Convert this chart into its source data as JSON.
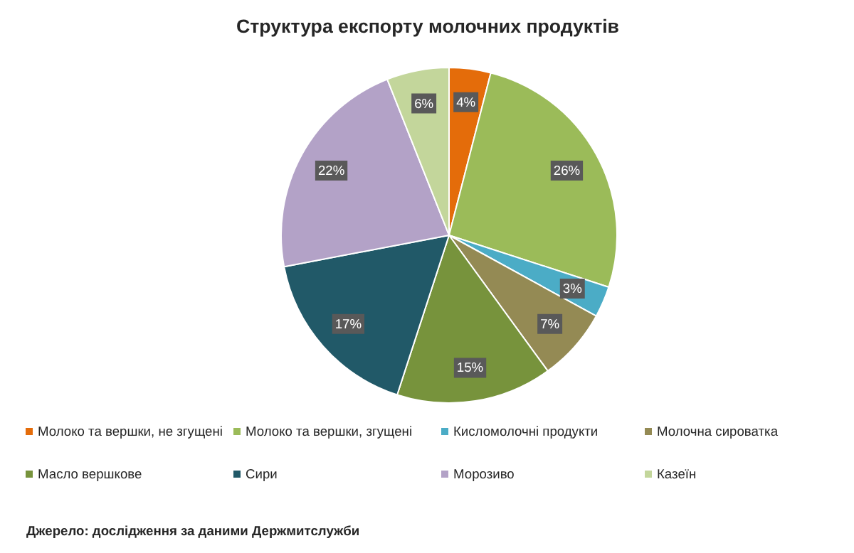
{
  "chart_data": {
    "type": "pie",
    "title": "Структура експорту молочних продуктів",
    "categories": [
      "Молоко та вершки, не згущені",
      "Молоко та вершки, згущені",
      "Кисломолочні  продукти",
      "Молочна сироватка",
      "Масло вершкове",
      "Сири",
      "Морозиво",
      "Казеїн"
    ],
    "values": [
      4,
      26,
      3,
      7,
      15,
      17,
      22,
      6
    ],
    "colors": [
      "#e46c0a",
      "#9bbb59",
      "#4bacc6",
      "#948a54",
      "#77933c",
      "#215968",
      "#b3a2c7",
      "#c3d69b"
    ],
    "value_labels": [
      "4%",
      "26%",
      "3%",
      "7%",
      "15%",
      "17%",
      "22%",
      "6%"
    ],
    "legend": "bottom",
    "annotations": [
      "Джерело: дослідження за даними Держмитслужби"
    ]
  }
}
